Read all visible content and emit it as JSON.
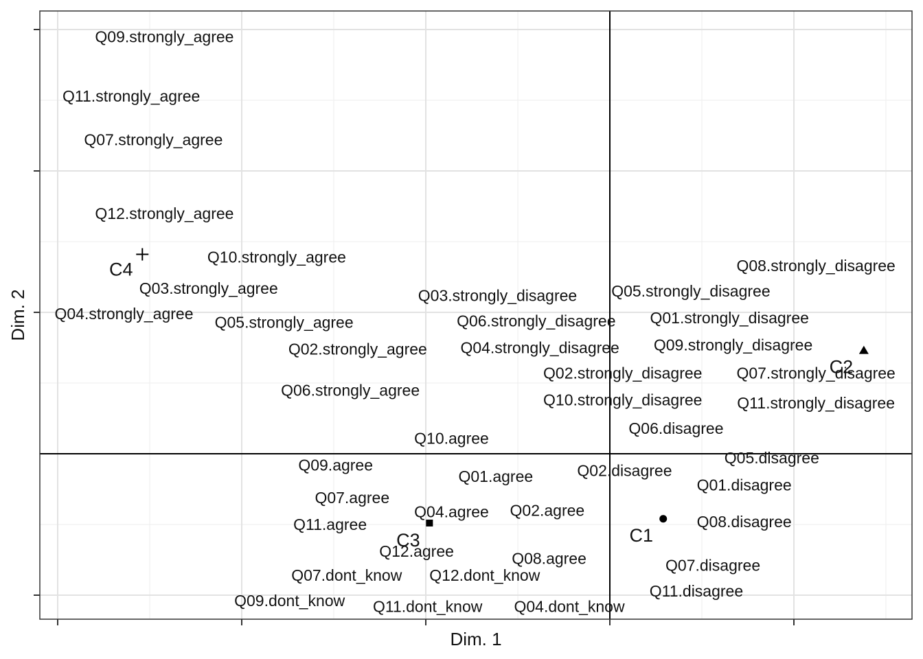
{
  "chart_data": {
    "type": "scatter",
    "xlabel": "Dim. 1",
    "ylabel": "Dim. 2",
    "xlim": [
      -3.1,
      1.65
    ],
    "ylim": [
      -1.2,
      3.15
    ],
    "grid": true,
    "reference_lines": {
      "x": 0,
      "y": 0
    },
    "points": [
      {
        "label": "Q09.strongly_agree",
        "x": -2.42,
        "y": 2.95
      },
      {
        "label": "Q11.strongly_agree",
        "x": -2.6,
        "y": 2.53
      },
      {
        "label": "Q07.strongly_agree",
        "x": -2.48,
        "y": 2.22
      },
      {
        "label": "Q12.strongly_agree",
        "x": -2.42,
        "y": 1.7
      },
      {
        "label": "Q10.strongly_agree",
        "x": -1.81,
        "y": 1.39
      },
      {
        "label": "Q03.strongly_agree",
        "x": -2.18,
        "y": 1.17
      },
      {
        "label": "Q04.strongly_agree",
        "x": -2.64,
        "y": 0.99
      },
      {
        "label": "Q05.strongly_agree",
        "x": -1.77,
        "y": 0.93
      },
      {
        "label": "Q02.strongly_agree",
        "x": -1.37,
        "y": 0.74
      },
      {
        "label": "Q06.strongly_agree",
        "x": -1.41,
        "y": 0.45
      },
      {
        "label": "Q03.strongly_disagree",
        "x": -0.61,
        "y": 1.12
      },
      {
        "label": "Q06.strongly_disagree",
        "x": -0.4,
        "y": 0.94
      },
      {
        "label": "Q04.strongly_disagree",
        "x": -0.38,
        "y": 0.75
      },
      {
        "label": "Q02.strongly_disagree",
        "x": 0.07,
        "y": 0.57
      },
      {
        "label": "Q10.strongly_disagree",
        "x": 0.07,
        "y": 0.38
      },
      {
        "label": "Q05.strongly_disagree",
        "x": 0.44,
        "y": 1.15
      },
      {
        "label": "Q01.strongly_disagree",
        "x": 0.65,
        "y": 0.96
      },
      {
        "label": "Q09.strongly_disagree",
        "x": 0.67,
        "y": 0.77
      },
      {
        "label": "Q08.strongly_disagree",
        "x": 1.12,
        "y": 1.33
      },
      {
        "label": "Q07.strongly_disagree",
        "x": 1.12,
        "y": 0.57
      },
      {
        "label": "Q11.strongly_disagree",
        "x": 1.12,
        "y": 0.36
      },
      {
        "label": "Q06.disagree",
        "x": 0.36,
        "y": 0.18
      },
      {
        "label": "Q05.disagree",
        "x": 0.88,
        "y": -0.03
      },
      {
        "label": "Q02.disagree",
        "x": 0.08,
        "y": -0.12
      },
      {
        "label": "Q01.disagree",
        "x": 0.73,
        "y": -0.22
      },
      {
        "label": "Q08.disagree",
        "x": 0.73,
        "y": -0.48
      },
      {
        "label": "Q07.disagree",
        "x": 0.56,
        "y": -0.79
      },
      {
        "label": "Q11.disagree",
        "x": 0.47,
        "y": -0.97
      },
      {
        "label": "Q10.agree",
        "x": -0.86,
        "y": 0.11
      },
      {
        "label": "Q09.agree",
        "x": -1.49,
        "y": -0.08
      },
      {
        "label": "Q01.agree",
        "x": -0.62,
        "y": -0.16
      },
      {
        "label": "Q07.agree",
        "x": -1.4,
        "y": -0.31
      },
      {
        "label": "Q04.agree",
        "x": -0.86,
        "y": -0.41
      },
      {
        "label": "Q02.agree",
        "x": -0.34,
        "y": -0.4
      },
      {
        "label": "Q11.agree",
        "x": -1.52,
        "y": -0.5
      },
      {
        "label": "Q12.agree",
        "x": -1.05,
        "y": -0.69
      },
      {
        "label": "Q08.agree",
        "x": -0.33,
        "y": -0.74
      },
      {
        "label": "Q07.dont_know",
        "x": -1.43,
        "y": -0.86
      },
      {
        "label": "Q12.dont_know",
        "x": -0.68,
        "y": -0.86
      },
      {
        "label": "Q09.dont_know",
        "x": -1.74,
        "y": -1.04
      },
      {
        "label": "Q11.dont_know",
        "x": -0.99,
        "y": -1.08
      },
      {
        "label": "Q04.dont_know",
        "x": -0.22,
        "y": -1.08
      }
    ],
    "clusters": [
      {
        "label": "C1",
        "marker": "circle",
        "x": 0.29,
        "y": -0.46
      },
      {
        "label": "C2",
        "marker": "triangle",
        "x": 1.38,
        "y": 0.73
      },
      {
        "label": "C3",
        "marker": "square",
        "x": -0.98,
        "y": -0.49
      },
      {
        "label": "C4",
        "marker": "plus",
        "x": -2.54,
        "y": 1.41
      }
    ]
  }
}
